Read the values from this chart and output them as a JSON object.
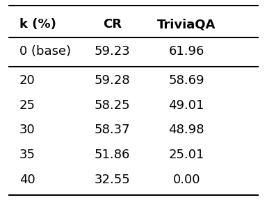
{
  "columns": [
    "k (%)",
    "CR",
    "TriviaQA"
  ],
  "rows": [
    [
      "0 (base)",
      "59.23",
      "61.96"
    ],
    [
      "20",
      "59.28",
      "58.69"
    ],
    [
      "25",
      "58.25",
      "49.01"
    ],
    [
      "30",
      "58.37",
      "48.98"
    ],
    [
      "35",
      "51.86",
      "25.01"
    ],
    [
      "40",
      "32.55",
      "0.00"
    ]
  ],
  "background_color": "#ffffff",
  "text_color": "#000000",
  "header_fontsize": 13,
  "body_fontsize": 13,
  "figsize": [
    3.84,
    3.14
  ],
  "dpi": 100
}
